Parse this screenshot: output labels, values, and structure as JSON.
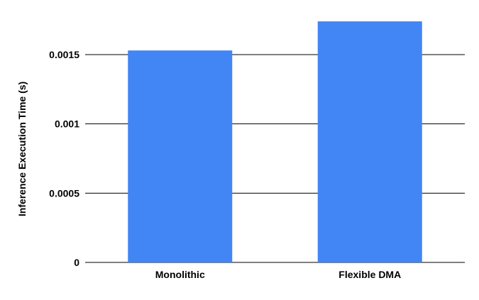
{
  "chart_data": {
    "type": "bar",
    "title": "",
    "xlabel": "",
    "ylabel": "Inference Execution Time (s)",
    "categories": [
      "Monolithic",
      "Flexible DMA"
    ],
    "values": [
      0.00153,
      0.00174
    ],
    "ylim": [
      0,
      0.00175
    ],
    "yticks": [
      0,
      0.0005,
      0.001,
      0.0015
    ],
    "ytick_labels": [
      "0",
      "0.0005",
      "0.001",
      "0.0015"
    ],
    "grid": true,
    "legend": "none",
    "bar_color": "#4285F4",
    "grid_color": "#000000"
  }
}
